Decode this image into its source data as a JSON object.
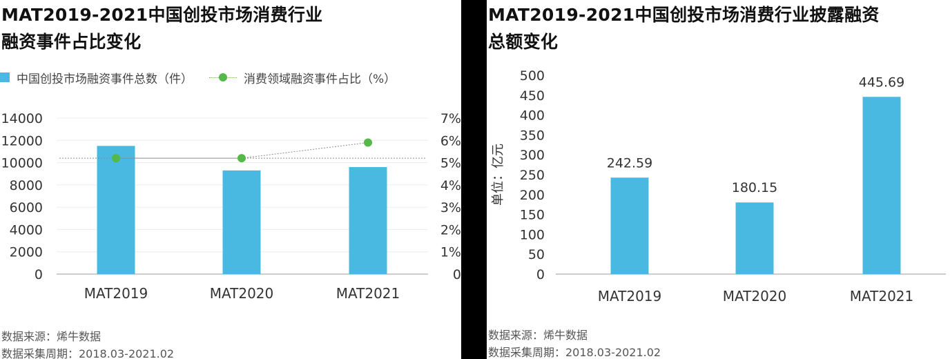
{
  "colors": {
    "bar": "#4ab9e2",
    "line": "#54b948",
    "axis": "#9a9a9a",
    "text": "#333333"
  },
  "left": {
    "title_line1": "MAT2019-2021中国创投市场消费行业",
    "title_line2": "融资事件占比变化",
    "legend_bar": "中国创投市场融资事件总数（件）",
    "legend_line": "消费领域融资事件占比（%）",
    "source1": "数据来源：烯牛数据",
    "source2": "数据采集周期：2018.03-2021.02"
  },
  "right": {
    "title_line1": "MAT2019-2021中国创投市场消费行业披露融资",
    "title_line2": "总额变化",
    "source1": "数据来源：烯牛数据",
    "source2": "数据采集周期：2018.03-2021.02"
  },
  "chart_data": [
    {
      "type": "bar",
      "title": "MAT2019-2021中国创投市场消费行业融资事件占比变化",
      "categories": [
        "MAT2019",
        "MAT2020",
        "MAT2021"
      ],
      "series": [
        {
          "name": "中国创投市场融资事件总数（件）",
          "type": "bar",
          "axis": "left",
          "values": [
            11500,
            9300,
            9600
          ]
        },
        {
          "name": "消费领域融资事件占比（%）",
          "type": "line",
          "axis": "right",
          "values": [
            5.2,
            5.2,
            5.9
          ]
        }
      ],
      "ylim": [
        0,
        14000
      ],
      "y_ticks": [
        "0",
        "2000",
        "4000",
        "6000",
        "8000",
        "10000",
        "12000",
        "14000"
      ],
      "y2lim": [
        0,
        7
      ],
      "y2_ticks": [
        "0",
        "1%",
        "2%",
        "3%",
        "4%",
        "5%",
        "6%",
        "7%"
      ],
      "grid": true,
      "legend": "top-left"
    },
    {
      "type": "bar",
      "title": "MAT2019-2021中国创投市场消费行业披露融资总额变化",
      "categories": [
        "MAT2019",
        "MAT2020",
        "MAT2021"
      ],
      "values": [
        242.59,
        180.15,
        445.69
      ],
      "value_labels": [
        "242.59",
        "180.15",
        "445.69"
      ],
      "ylabel": "单位：亿元",
      "ylim": [
        0,
        500
      ],
      "y_ticks": [
        "0",
        "50",
        "100",
        "150",
        "200",
        "250",
        "300",
        "350",
        "400",
        "450",
        "500"
      ],
      "grid": false
    }
  ]
}
